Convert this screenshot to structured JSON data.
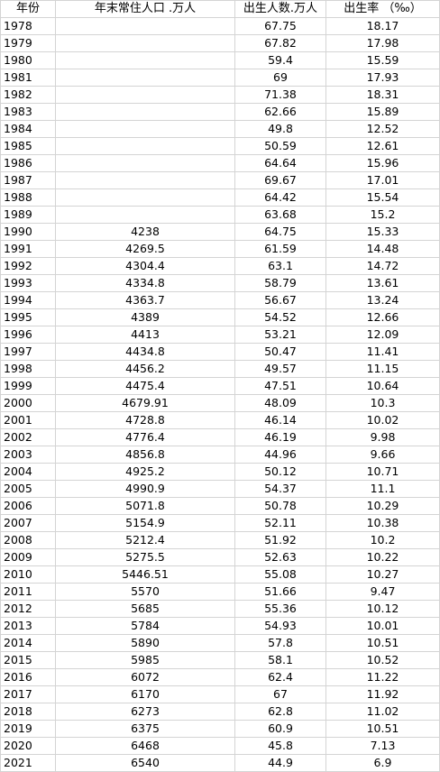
{
  "headers": [
    "年份",
    "年末常住人口 .万人",
    "出生人数.万人",
    "出生率 （‰）"
  ],
  "rows": [
    [
      "1978",
      "",
      "67.75",
      "18.17"
    ],
    [
      "1979",
      "",
      "67.82",
      "17.98"
    ],
    [
      "1980",
      "",
      "59.4",
      "15.59"
    ],
    [
      "1981",
      "",
      "69",
      "17.93"
    ],
    [
      "1982",
      "",
      "71.38",
      "18.31"
    ],
    [
      "1983",
      "",
      "62.66",
      "15.89"
    ],
    [
      "1984",
      "",
      "49.8",
      "12.52"
    ],
    [
      "1985",
      "",
      "50.59",
      "12.61"
    ],
    [
      "1986",
      "",
      "64.64",
      "15.96"
    ],
    [
      "1987",
      "",
      "69.67",
      "17.01"
    ],
    [
      "1988",
      "",
      "64.42",
      "15.54"
    ],
    [
      "1989",
      "",
      "63.68",
      "15.2"
    ],
    [
      "1990",
      "4238",
      "64.75",
      "15.33"
    ],
    [
      "1991",
      "4269.5",
      "61.59",
      "14.48"
    ],
    [
      "1992",
      "4304.4",
      "63.1",
      "14.72"
    ],
    [
      "1993",
      "4334.8",
      "58.79",
      "13.61"
    ],
    [
      "1994",
      "4363.7",
      "56.67",
      "13.24"
    ],
    [
      "1995",
      "4389",
      "54.52",
      "12.66"
    ],
    [
      "1996",
      "4413",
      "53.21",
      "12.09"
    ],
    [
      "1997",
      "4434.8",
      "50.47",
      "11.41"
    ],
    [
      "1998",
      "4456.2",
      "49.57",
      "11.15"
    ],
    [
      "1999",
      "4475.4",
      "47.51",
      "10.64"
    ],
    [
      "2000",
      "4679.91",
      "48.09",
      "10.3"
    ],
    [
      "2001",
      "4728.8",
      "46.14",
      "10.02"
    ],
    [
      "2002",
      "4776.4",
      "46.19",
      "9.98"
    ],
    [
      "2003",
      "4856.8",
      "44.96",
      "9.66"
    ],
    [
      "2004",
      "4925.2",
      "50.12",
      "10.71"
    ],
    [
      "2005",
      "4990.9",
      "54.37",
      "11.1"
    ],
    [
      "2006",
      "5071.8",
      "50.78",
      "10.29"
    ],
    [
      "2007",
      "5154.9",
      "52.11",
      "10.38"
    ],
    [
      "2008",
      "5212.4",
      "51.92",
      "10.2"
    ],
    [
      "2009",
      "5275.5",
      "52.63",
      "10.22"
    ],
    [
      "2010",
      "5446.51",
      "55.08",
      "10.27"
    ],
    [
      "2011",
      "5570",
      "51.66",
      "9.47"
    ],
    [
      "2012",
      "5685",
      "55.36",
      "10.12"
    ],
    [
      "2013",
      "5784",
      "54.93",
      "10.01"
    ],
    [
      "2014",
      "5890",
      "57.8",
      "10.51"
    ],
    [
      "2015",
      "5985",
      "58.1",
      "10.52"
    ],
    [
      "2016",
      "6072",
      "62.4",
      "11.22"
    ],
    [
      "2017",
      "6170",
      "67",
      "11.92"
    ],
    [
      "2018",
      "6273",
      "62.8",
      "11.02"
    ],
    [
      "2019",
      "6375",
      "60.9",
      "10.51"
    ],
    [
      "2020",
      "6468",
      "45.8",
      "7.13"
    ],
    [
      "2021",
      "6540",
      "44.9",
      "6.9"
    ]
  ],
  "colors": {
    "gridline": "#d4d4d4",
    "background": "#ffffff",
    "text": "#000000"
  }
}
